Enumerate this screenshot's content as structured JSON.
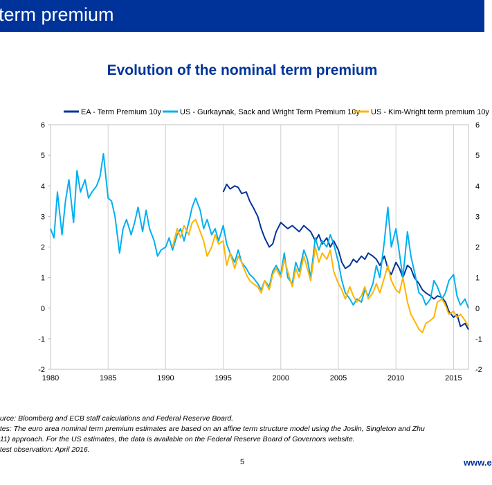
{
  "header": {
    "title": "term premium"
  },
  "footer": {
    "source": "ource: Bloomberg and ECB staff calculations and Federal Reserve Board.",
    "notes_line1": "otes: The euro area nominal term premium estimates are based on an affine term structure model using the Joslin,  Singleton and Zhu",
    "notes_line2": "011) approach.  For the US estimates,  the  data is  available on the Federal Reserve Board of Governors website.",
    "latest": "atest observation: April 2016.",
    "page_number": "5",
    "url": "www.e"
  },
  "chart_data": {
    "type": "line",
    "title": "Evolution of the nominal term premium",
    "xlabel": "",
    "ylabel": "",
    "xlim": [
      1980,
      2016.3
    ],
    "ylim": [
      -2,
      6
    ],
    "x_ticks": [
      1980,
      1985,
      1990,
      1995,
      2000,
      2005,
      2010,
      2015
    ],
    "y_ticks": [
      -2,
      -1,
      0,
      1,
      2,
      3,
      4,
      5,
      6
    ],
    "grid": "vertical",
    "legend_position": "top",
    "colors": {
      "ea": "#003399",
      "gsw": "#00b0f0",
      "kw": "#ffb400",
      "grid": "#d0d0d0"
    },
    "series": [
      {
        "name": "EA - Term Premium 10y",
        "color": "#003399",
        "x": [
          1995.0,
          1995.3,
          1995.6,
          1996.0,
          1996.3,
          1996.6,
          1997.0,
          1997.3,
          1997.6,
          1998.0,
          1998.3,
          1998.6,
          1999.0,
          1999.3,
          1999.6,
          2000.0,
          2000.3,
          2000.6,
          2001.0,
          2001.3,
          2001.6,
          2002.0,
          2002.3,
          2002.6,
          2003.0,
          2003.3,
          2003.6,
          2004.0,
          2004.3,
          2004.6,
          2005.0,
          2005.3,
          2005.6,
          2006.0,
          2006.3,
          2006.6,
          2007.0,
          2007.3,
          2007.6,
          2008.0,
          2008.3,
          2008.6,
          2009.0,
          2009.3,
          2009.6,
          2010.0,
          2010.3,
          2010.6,
          2011.0,
          2011.3,
          2011.6,
          2012.0,
          2012.3,
          2012.6,
          2013.0,
          2013.3,
          2013.6,
          2014.0,
          2014.3,
          2014.6,
          2015.0,
          2015.3,
          2015.6,
          2016.0,
          2016.3
        ],
        "values": [
          3.8,
          4.05,
          3.9,
          4.0,
          3.95,
          3.75,
          3.8,
          3.5,
          3.3,
          3.0,
          2.6,
          2.3,
          2.0,
          2.1,
          2.5,
          2.8,
          2.7,
          2.6,
          2.7,
          2.6,
          2.5,
          2.7,
          2.6,
          2.5,
          2.2,
          2.4,
          2.1,
          2.3,
          2.0,
          2.2,
          1.9,
          1.5,
          1.3,
          1.4,
          1.6,
          1.5,
          1.7,
          1.6,
          1.8,
          1.7,
          1.6,
          1.4,
          1.7,
          1.3,
          1.1,
          1.5,
          1.3,
          1.0,
          1.4,
          1.3,
          1.0,
          0.8,
          0.6,
          0.5,
          0.4,
          0.3,
          0.4,
          0.35,
          0.2,
          -0.1,
          -0.3,
          -0.2,
          -0.6,
          -0.5,
          -0.7
        ]
      },
      {
        "name": "US - Gurkaynak, Sack and Wright Term Premium 10y",
        "color": "#00b0f0",
        "x": [
          1980.0,
          1980.3,
          1980.6,
          1981.0,
          1981.3,
          1981.6,
          1982.0,
          1982.3,
          1982.6,
          1983.0,
          1983.3,
          1983.6,
          1984.0,
          1984.3,
          1984.6,
          1985.0,
          1985.3,
          1985.6,
          1986.0,
          1986.3,
          1986.6,
          1987.0,
          1987.3,
          1987.6,
          1988.0,
          1988.3,
          1988.6,
          1989.0,
          1989.3,
          1989.6,
          1990.0,
          1990.3,
          1990.6,
          1991.0,
          1991.3,
          1991.6,
          1992.0,
          1992.3,
          1992.6,
          1993.0,
          1993.3,
          1993.6,
          1994.0,
          1994.3,
          1994.6,
          1995.0,
          1995.3,
          1995.6,
          1996.0,
          1996.3,
          1996.6,
          1997.0,
          1997.3,
          1997.6,
          1998.0,
          1998.3,
          1998.6,
          1999.0,
          1999.3,
          1999.6,
          2000.0,
          2000.3,
          2000.6,
          2001.0,
          2001.3,
          2001.6,
          2002.0,
          2002.3,
          2002.6,
          2003.0,
          2003.3,
          2003.6,
          2004.0,
          2004.3,
          2004.6,
          2005.0,
          2005.3,
          2005.6,
          2006.0,
          2006.3,
          2006.6,
          2007.0,
          2007.3,
          2007.6,
          2008.0,
          2008.3,
          2008.6,
          2009.0,
          2009.3,
          2009.6,
          2010.0,
          2010.3,
          2010.6,
          2011.0,
          2011.3,
          2011.6,
          2012.0,
          2012.3,
          2012.6,
          2013.0,
          2013.3,
          2013.6,
          2014.0,
          2014.3,
          2014.6,
          2015.0,
          2015.3,
          2015.6,
          2016.0,
          2016.3
        ],
        "values": [
          2.6,
          2.3,
          3.8,
          2.4,
          3.5,
          4.2,
          2.8,
          4.5,
          3.8,
          4.2,
          3.6,
          3.8,
          4.0,
          4.3,
          5.05,
          3.6,
          3.5,
          3.0,
          1.8,
          2.6,
          2.9,
          2.4,
          2.8,
          3.3,
          2.5,
          3.2,
          2.6,
          2.2,
          1.7,
          1.9,
          2.0,
          2.3,
          1.9,
          2.4,
          2.6,
          2.2,
          2.8,
          3.3,
          3.6,
          3.2,
          2.6,
          2.9,
          2.4,
          2.6,
          2.2,
          2.7,
          2.1,
          1.8,
          1.5,
          1.9,
          1.5,
          1.3,
          1.1,
          1.0,
          0.8,
          0.6,
          0.9,
          0.7,
          1.2,
          1.4,
          1.1,
          1.8,
          1.0,
          0.8,
          1.5,
          1.2,
          1.9,
          1.6,
          1.0,
          2.3,
          1.9,
          2.2,
          2.0,
          2.4,
          2.1,
          1.5,
          0.9,
          0.5,
          0.3,
          0.1,
          0.3,
          0.2,
          0.6,
          0.4,
          0.8,
          1.4,
          1.0,
          2.2,
          3.3,
          2.0,
          2.6,
          1.8,
          1.0,
          2.5,
          1.7,
          1.2,
          0.5,
          0.4,
          0.1,
          0.3,
          0.9,
          0.7,
          0.3,
          0.5,
          0.9,
          1.1,
          0.4,
          0.1,
          0.3,
          0.0
        ]
      },
      {
        "name": "US - Kim-Wright term premium 10y",
        "color": "#ffb400",
        "x": [
          1990.6,
          1991.0,
          1991.3,
          1991.6,
          1992.0,
          1992.3,
          1992.6,
          1993.0,
          1993.3,
          1993.6,
          1994.0,
          1994.3,
          1994.6,
          1995.0,
          1995.3,
          1995.6,
          1996.0,
          1996.3,
          1996.6,
          1997.0,
          1997.3,
          1997.6,
          1998.0,
          1998.3,
          1998.6,
          1999.0,
          1999.3,
          1999.6,
          2000.0,
          2000.3,
          2000.6,
          2001.0,
          2001.3,
          2001.6,
          2002.0,
          2002.3,
          2002.6,
          2003.0,
          2003.3,
          2003.6,
          2004.0,
          2004.3,
          2004.6,
          2005.0,
          2005.3,
          2005.6,
          2006.0,
          2006.3,
          2006.6,
          2007.0,
          2007.3,
          2007.6,
          2008.0,
          2008.3,
          2008.6,
          2009.0,
          2009.3,
          2009.6,
          2010.0,
          2010.3,
          2010.6,
          2011.0,
          2011.3,
          2011.6,
          2012.0,
          2012.3,
          2012.6,
          2013.0,
          2013.3,
          2013.6,
          2014.0,
          2014.3,
          2014.6,
          2015.0,
          2015.3,
          2015.6,
          2016.0,
          2016.3
        ],
        "values": [
          2.0,
          2.6,
          2.3,
          2.7,
          2.4,
          2.8,
          2.9,
          2.5,
          2.2,
          1.7,
          2.0,
          2.4,
          2.1,
          2.2,
          1.4,
          1.8,
          1.3,
          1.7,
          1.5,
          1.1,
          0.9,
          0.8,
          0.7,
          0.5,
          0.9,
          0.6,
          1.1,
          1.3,
          1.0,
          1.6,
          1.2,
          0.7,
          1.3,
          1.0,
          1.7,
          1.3,
          0.9,
          2.0,
          1.5,
          1.8,
          1.6,
          1.9,
          1.2,
          0.8,
          0.6,
          0.3,
          0.7,
          0.4,
          0.2,
          0.4,
          0.7,
          0.3,
          0.5,
          0.8,
          0.5,
          1.0,
          1.4,
          0.9,
          0.6,
          0.5,
          1.0,
          0.2,
          -0.2,
          -0.4,
          -0.7,
          -0.8,
          -0.5,
          -0.4,
          -0.3,
          0.2,
          0.3,
          0.1,
          -0.2,
          -0.1,
          -0.3,
          -0.2,
          -0.4,
          -0.6
        ]
      }
    ]
  }
}
